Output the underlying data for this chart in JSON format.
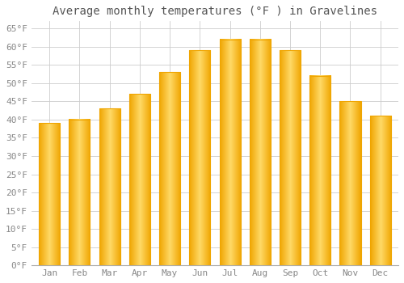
{
  "title": "Average monthly temperatures (°F ) in Gravelines",
  "months": [
    "Jan",
    "Feb",
    "Mar",
    "Apr",
    "May",
    "Jun",
    "Jul",
    "Aug",
    "Sep",
    "Oct",
    "Nov",
    "Dec"
  ],
  "values": [
    39,
    40,
    43,
    47,
    53,
    59,
    62,
    62,
    59,
    52,
    45,
    41
  ],
  "bar_color_center": "#FFD966",
  "bar_color_edge": "#F0A500",
  "background_color": "#FFFFFF",
  "grid_color": "#CCCCCC",
  "ylim": [
    0,
    67
  ],
  "yticks": [
    0,
    5,
    10,
    15,
    20,
    25,
    30,
    35,
    40,
    45,
    50,
    55,
    60,
    65
  ],
  "title_fontsize": 10,
  "tick_fontsize": 8,
  "font_family": "monospace",
  "title_color": "#555555",
  "tick_color": "#888888"
}
